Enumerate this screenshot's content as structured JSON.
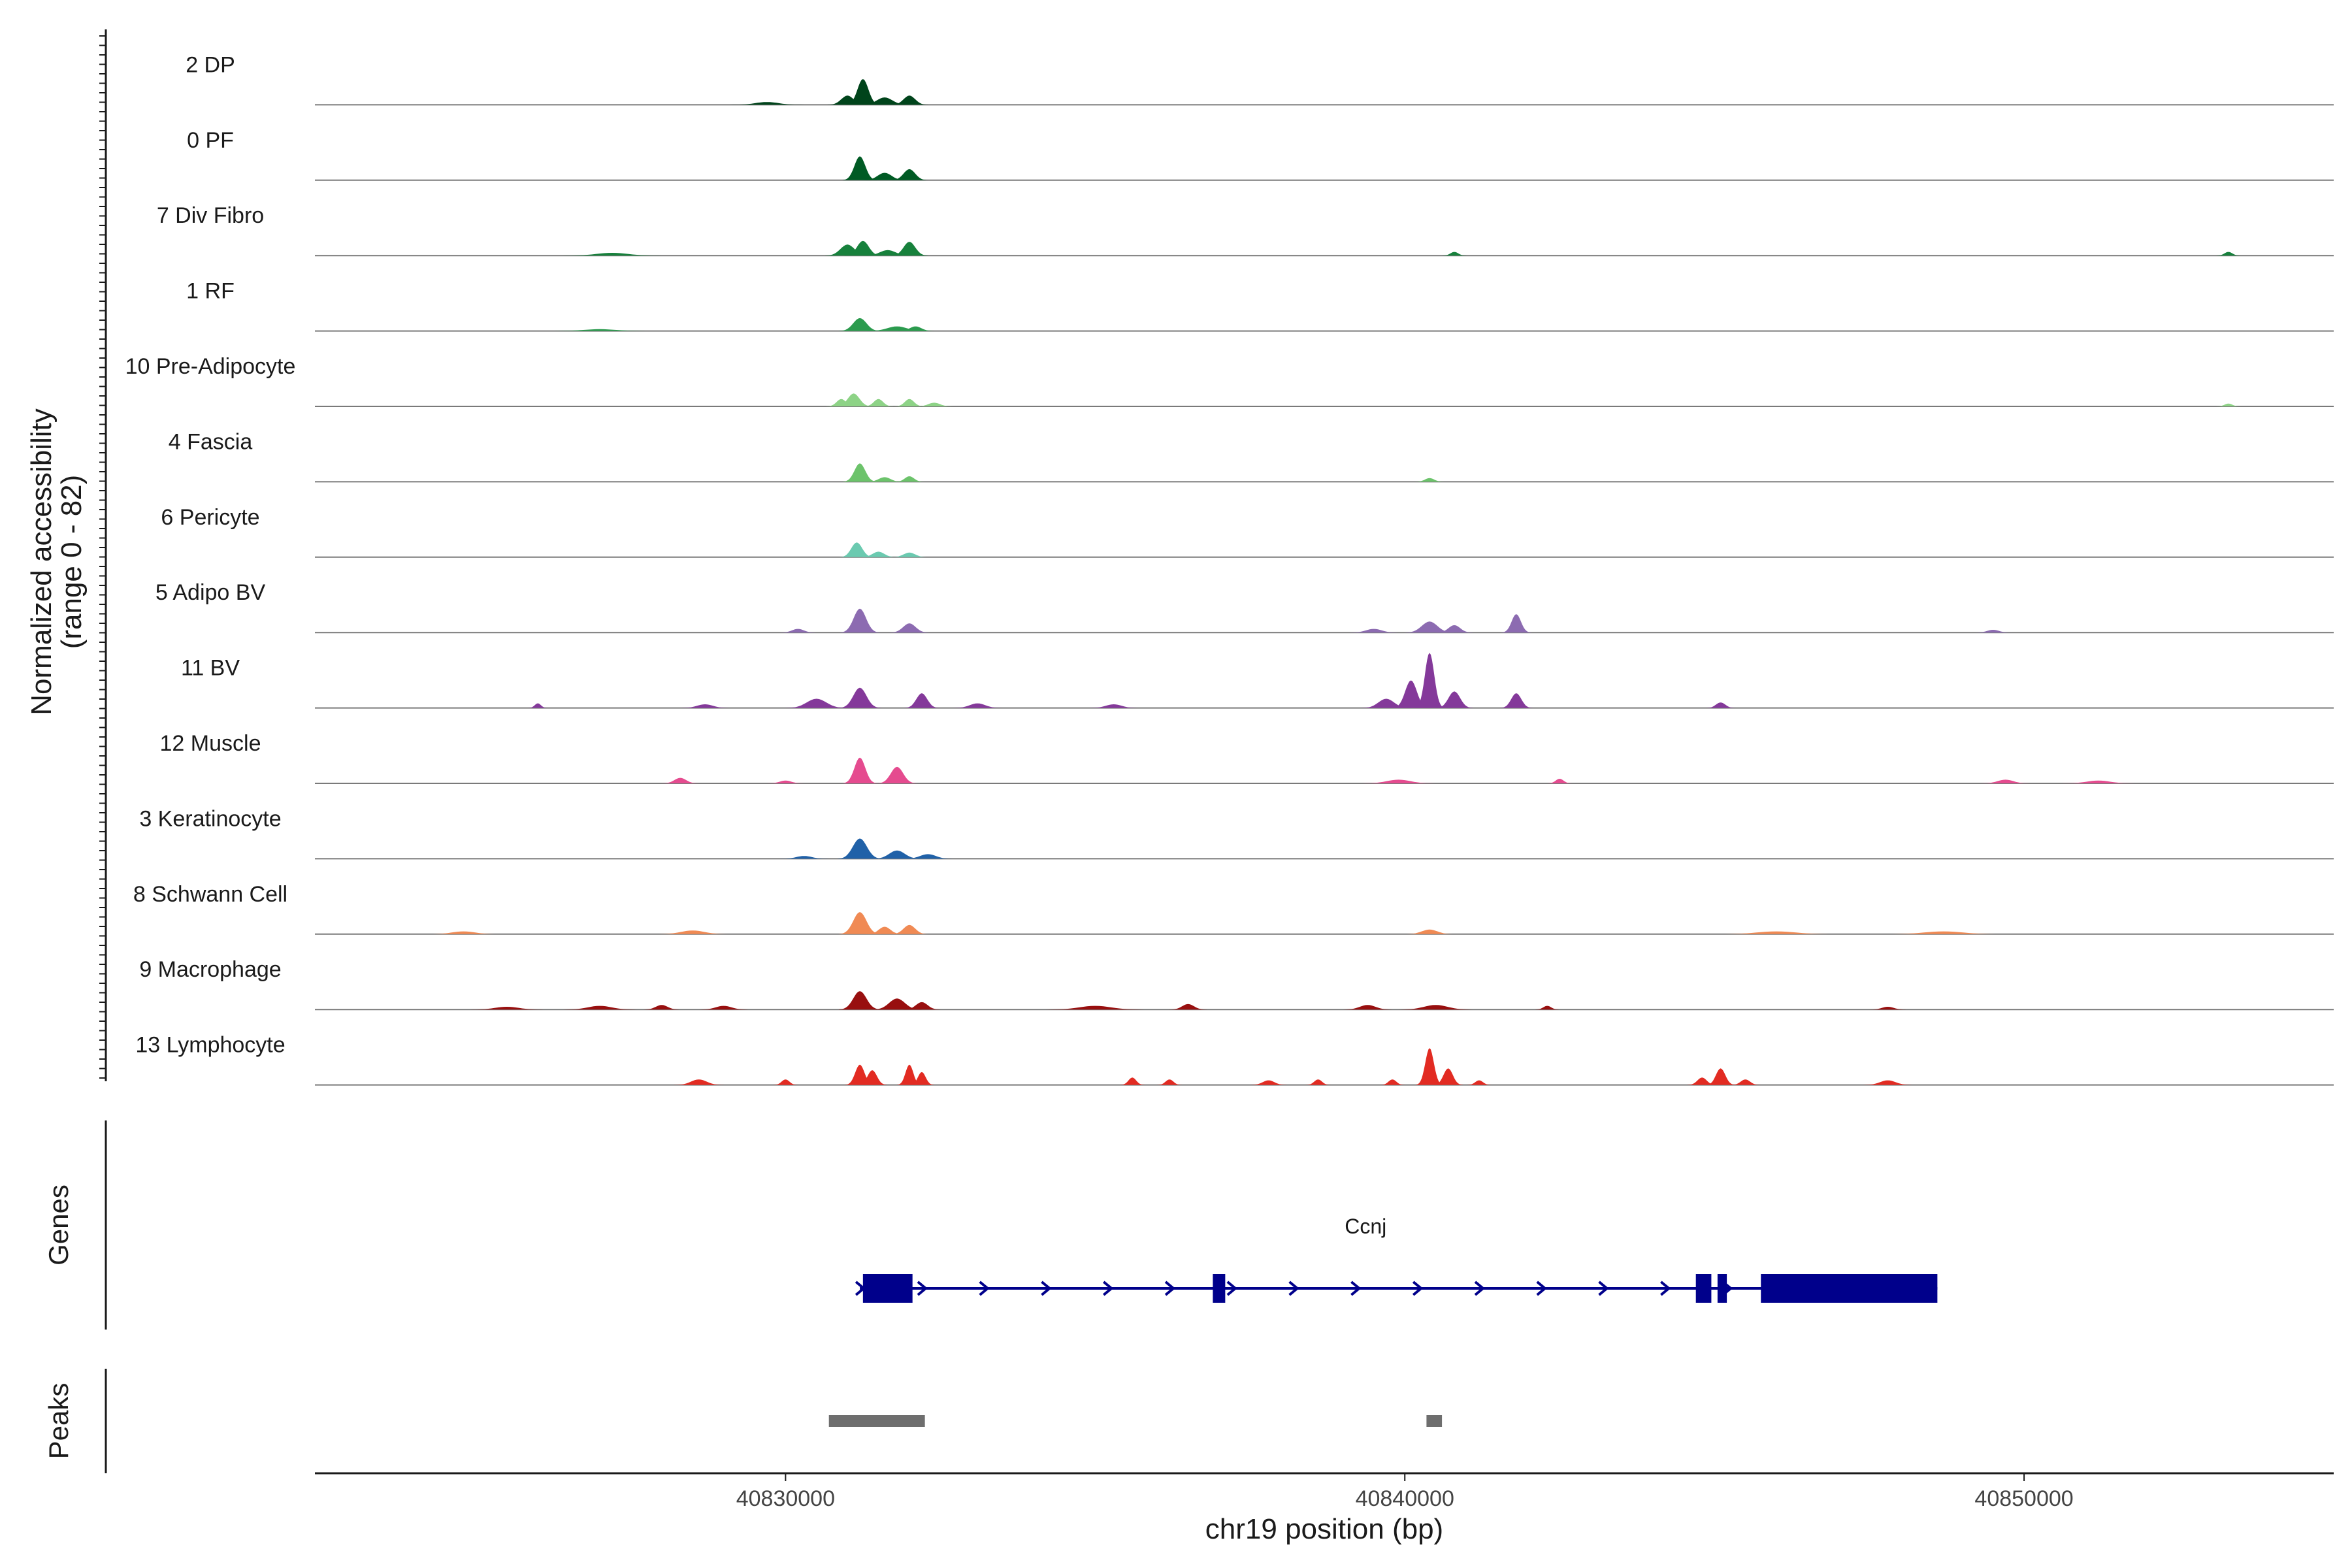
{
  "chart_data": {
    "type": "area",
    "y_axis_title_line1": "Normalized accessibility",
    "y_axis_title_line2": "(range 0 - 82)",
    "ylim": [
      0,
      82
    ],
    "x_axis_title": "chr19 position (bp)",
    "xlim": [
      40822400,
      40855000
    ],
    "x_ticks": [
      40830000,
      40840000,
      40850000
    ],
    "x_tick_labels": [
      "40830000",
      "40840000",
      "40850000"
    ],
    "tracks": [
      {
        "name": "2 DP",
        "color": "#00441b",
        "peaks": [
          [
            40831000,
            10,
            160
          ],
          [
            40831250,
            28,
            140
          ],
          [
            40831600,
            8,
            200
          ],
          [
            40832000,
            10,
            150
          ],
          [
            40829700,
            3,
            300
          ]
        ]
      },
      {
        "name": "0 PF",
        "color": "#005a24",
        "peaks": [
          [
            40831200,
            26,
            140
          ],
          [
            40831600,
            8,
            180
          ],
          [
            40832000,
            12,
            150
          ]
        ]
      },
      {
        "name": "7 Div Fibro",
        "color": "#17813c",
        "peaks": [
          [
            40831000,
            12,
            180
          ],
          [
            40831250,
            16,
            150
          ],
          [
            40832000,
            15,
            150
          ],
          [
            40831650,
            6,
            200
          ],
          [
            40827200,
            3,
            400
          ],
          [
            40840800,
            4,
            100
          ],
          [
            40853300,
            4,
            100
          ]
        ]
      },
      {
        "name": "1 RF",
        "color": "#2b9b4e",
        "peaks": [
          [
            40831200,
            14,
            170
          ],
          [
            40831800,
            5,
            250
          ],
          [
            40832100,
            5,
            150
          ],
          [
            40827000,
            2,
            400
          ]
        ]
      },
      {
        "name": "10 Pre-Adipocyte",
        "color": "#8dd386",
        "peaks": [
          [
            40831100,
            14,
            150
          ],
          [
            40830900,
            8,
            120
          ],
          [
            40831500,
            8,
            120
          ],
          [
            40832000,
            8,
            120
          ],
          [
            40832400,
            4,
            150
          ],
          [
            40853300,
            3,
            100
          ]
        ]
      },
      {
        "name": "4 Fascia",
        "color": "#6cc36b",
        "peaks": [
          [
            40831200,
            20,
            140
          ],
          [
            40831600,
            5,
            150
          ],
          [
            40832000,
            6,
            120
          ],
          [
            40840400,
            4,
            120
          ]
        ]
      },
      {
        "name": "6 Pericyte",
        "color": "#6bcab0",
        "peaks": [
          [
            40831150,
            16,
            140
          ],
          [
            40831500,
            6,
            150
          ],
          [
            40832000,
            5,
            150
          ]
        ]
      },
      {
        "name": "5 Adipo BV",
        "color": "#8c6bb1",
        "peaks": [
          [
            40831200,
            26,
            160
          ],
          [
            40832000,
            10,
            160
          ],
          [
            40840400,
            12,
            200
          ],
          [
            40840800,
            8,
            150
          ],
          [
            40841800,
            20,
            120
          ],
          [
            40839500,
            4,
            200
          ],
          [
            40830200,
            4,
            150
          ],
          [
            40849500,
            3,
            150
          ]
        ]
      },
      {
        "name": "11 BV",
        "color": "#84399a",
        "peaks": [
          [
            40831200,
            22,
            170
          ],
          [
            40832200,
            16,
            140
          ],
          [
            40830500,
            10,
            250
          ],
          [
            40840400,
            60,
            120
          ],
          [
            40840100,
            30,
            150
          ],
          [
            40840800,
            18,
            150
          ],
          [
            40841800,
            16,
            130
          ],
          [
            40839700,
            10,
            200
          ],
          [
            40826000,
            5,
            80
          ],
          [
            40833100,
            5,
            200
          ],
          [
            40845100,
            6,
            120
          ],
          [
            40828700,
            4,
            200
          ],
          [
            40835300,
            4,
            200
          ]
        ]
      },
      {
        "name": "12 Muscle",
        "color": "#e54b8f",
        "peaks": [
          [
            40831200,
            28,
            140
          ],
          [
            40831800,
            18,
            160
          ],
          [
            40828300,
            6,
            150
          ],
          [
            40839900,
            4,
            300
          ],
          [
            40842500,
            5,
            100
          ],
          [
            40849700,
            4,
            200
          ],
          [
            40851200,
            3,
            300
          ],
          [
            40830000,
            3,
            150
          ]
        ]
      },
      {
        "name": "3 Keratinocyte",
        "color": "#2061a8",
        "peaks": [
          [
            40831200,
            22,
            180
          ],
          [
            40831800,
            9,
            200
          ],
          [
            40832300,
            5,
            200
          ],
          [
            40830300,
            3,
            200
          ]
        ]
      },
      {
        "name": "8 Schwann Cell",
        "color": "#f08a54",
        "peaks": [
          [
            40831200,
            24,
            170
          ],
          [
            40831600,
            8,
            150
          ],
          [
            40832000,
            10,
            150
          ],
          [
            40828500,
            4,
            300
          ],
          [
            40840400,
            5,
            200
          ],
          [
            40846000,
            3,
            500
          ],
          [
            40848700,
            3,
            500
          ],
          [
            40824800,
            3,
            300
          ]
        ]
      },
      {
        "name": "9 Macrophage",
        "color": "#980f0f",
        "peaks": [
          [
            40831200,
            20,
            170
          ],
          [
            40831800,
            12,
            200
          ],
          [
            40832200,
            8,
            150
          ],
          [
            40828000,
            5,
            150
          ],
          [
            40829000,
            4,
            200
          ],
          [
            40836500,
            6,
            150
          ],
          [
            40835000,
            4,
            400
          ],
          [
            40839400,
            5,
            200
          ],
          [
            40840500,
            5,
            300
          ],
          [
            40842300,
            4,
            100
          ],
          [
            40827000,
            4,
            300
          ],
          [
            40825500,
            3,
            300
          ],
          [
            40847800,
            3,
            150
          ]
        ]
      },
      {
        "name": "13 Lymphocyte",
        "color": "#e22b22",
        "peaks": [
          [
            40831200,
            22,
            120
          ],
          [
            40831400,
            16,
            120
          ],
          [
            40832000,
            22,
            100
          ],
          [
            40832200,
            14,
            100
          ],
          [
            40840400,
            40,
            110
          ],
          [
            40840700,
            18,
            120
          ],
          [
            40845100,
            18,
            120
          ],
          [
            40844800,
            8,
            120
          ],
          [
            40845500,
            6,
            120
          ],
          [
            40835600,
            8,
            100
          ],
          [
            40836200,
            6,
            100
          ],
          [
            40838600,
            6,
            100
          ],
          [
            40839800,
            6,
            100
          ],
          [
            40828600,
            6,
            200
          ],
          [
            40830000,
            6,
            100
          ],
          [
            40837800,
            5,
            150
          ],
          [
            40841200,
            5,
            100
          ],
          [
            40847800,
            5,
            200
          ]
        ]
      }
    ],
    "genes_panel_title": "Genes",
    "gene": {
      "name": "Ccnj",
      "color": "#00008b",
      "start": 40831200,
      "end": 40848600,
      "strand": "+",
      "exons": [
        [
          40831250,
          40832050
        ],
        [
          40836900,
          40837100
        ],
        [
          40844700,
          40844950
        ],
        [
          40845050,
          40845200
        ],
        [
          40845750,
          40848600
        ]
      ]
    },
    "peaks_panel_title": "Peaks",
    "peak_regions": [
      [
        40830700,
        40832250
      ],
      [
        40840350,
        40840600
      ]
    ],
    "peak_color": "#6e6e6e"
  }
}
